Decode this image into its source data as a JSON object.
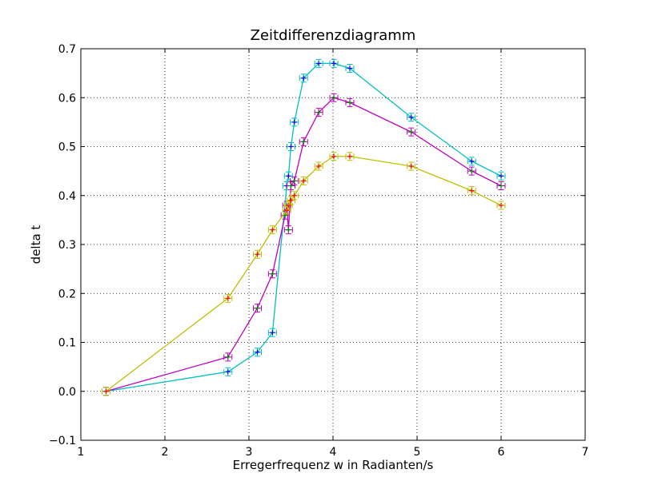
{
  "chart_data": {
    "type": "line",
    "title": "Zeitdifferenzdiagramm",
    "xlabel": "Erregerfrequenz w in Radianten/s",
    "ylabel": "delta t",
    "xlim": [
      1,
      7
    ],
    "ylim": [
      -0.1,
      0.7
    ],
    "xticks": [
      "1",
      "2",
      "3",
      "4",
      "5",
      "6",
      "7"
    ],
    "yticks": [
      "−0.1",
      "0.0",
      "0.1",
      "0.2",
      "0.3",
      "0.4",
      "0.5",
      "0.6",
      "0.7"
    ],
    "grid": true,
    "series": [
      {
        "color": "#00bfbf",
        "marker_color": "#0000ff",
        "x": [
          1.3,
          2.75,
          3.1,
          3.28,
          3.45,
          3.47,
          3.5,
          3.54,
          3.65,
          3.83,
          4.01,
          4.2,
          4.93,
          5.65,
          6.0
        ],
        "y": [
          0.0,
          0.04,
          0.08,
          0.12,
          0.42,
          0.44,
          0.5,
          0.55,
          0.64,
          0.67,
          0.67,
          0.66,
          0.56,
          0.47,
          0.44
        ]
      },
      {
        "color": "#bf00bf",
        "marker_color": "#008000",
        "x": [
          1.3,
          2.75,
          3.1,
          3.28,
          3.43,
          3.45,
          3.47,
          3.5,
          3.54,
          3.65,
          3.83,
          4.01,
          4.2,
          4.93,
          5.65,
          6.0
        ],
        "y": [
          0.0,
          0.07,
          0.17,
          0.24,
          0.36,
          0.38,
          0.33,
          0.42,
          0.43,
          0.51,
          0.57,
          0.6,
          0.59,
          0.53,
          0.45,
          0.42
        ]
      },
      {
        "color": "#bfbf00",
        "marker_color": "#ff0000",
        "x": [
          1.3,
          2.75,
          3.1,
          3.28,
          3.45,
          3.47,
          3.5,
          3.54,
          3.65,
          3.83,
          4.01,
          4.2,
          4.93,
          5.65,
          6.0
        ],
        "y": [
          0.0,
          0.19,
          0.28,
          0.33,
          0.37,
          0.38,
          0.39,
          0.4,
          0.43,
          0.46,
          0.48,
          0.48,
          0.46,
          0.41,
          0.38
        ]
      }
    ]
  }
}
